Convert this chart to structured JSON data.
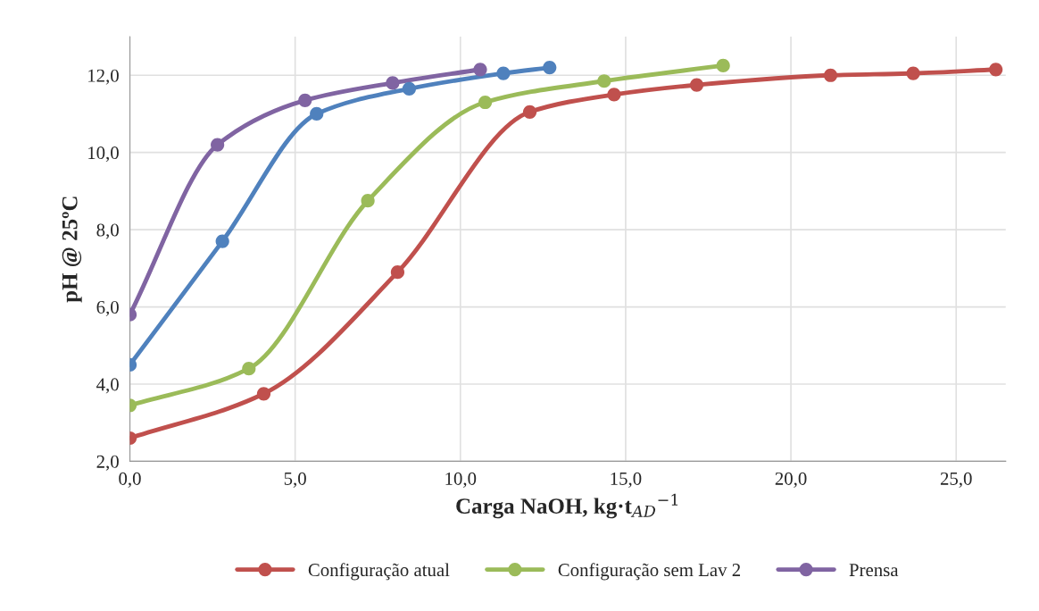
{
  "chart_data": {
    "type": "line",
    "xlabel": "Carga NaOH, kg·t$_{AD}$$^{−1}$",
    "ylabel": "pH @ 25ºC",
    "xlim": [
      0,
      26.5
    ],
    "ylim": [
      2,
      13
    ],
    "xticks": [
      {
        "value": 0,
        "label": "0,0"
      },
      {
        "value": 5,
        "label": "5,0"
      },
      {
        "value": 10,
        "label": "10,0"
      },
      {
        "value": 15,
        "label": "15,0"
      },
      {
        "value": 20,
        "label": "20,0"
      },
      {
        "value": 25,
        "label": "25,0"
      }
    ],
    "yticks": [
      {
        "value": 2,
        "label": "2,0"
      },
      {
        "value": 4,
        "label": "4,0"
      },
      {
        "value": 6,
        "label": "6,0"
      },
      {
        "value": 8,
        "label": "8,0"
      },
      {
        "value": 10,
        "label": "10,0"
      },
      {
        "value": 12,
        "label": "12,0"
      }
    ],
    "grid": true,
    "legend": "bottom",
    "marker": "circle",
    "line_style": "solid",
    "series": [
      {
        "color": "#4f81bd",
        "x": [
          0,
          2.8,
          5.65,
          8.45,
          11.3,
          12.7
        ],
        "values": [
          4.5,
          7.7,
          11.0,
          11.65,
          12.05,
          12.2
        ]
      },
      {
        "name": "Configuração atual",
        "color": "#c0504d",
        "x": [
          0,
          4.05,
          8.1,
          12.1,
          14.65,
          17.15,
          21.2,
          23.7,
          26.2
        ],
        "values": [
          2.6,
          3.75,
          6.9,
          11.05,
          11.5,
          11.75,
          12.0,
          12.05,
          12.15
        ]
      },
      {
        "name": "Configuração sem Lav 2",
        "color": "#9bbb59",
        "x": [
          0,
          3.6,
          7.2,
          10.75,
          14.35,
          17.95
        ],
        "values": [
          3.45,
          4.4,
          8.75,
          11.3,
          11.85,
          12.25
        ]
      },
      {
        "name": "Prensa",
        "color": "#8064a2",
        "x": [
          0,
          2.65,
          5.3,
          7.95,
          10.6
        ],
        "values": [
          5.8,
          10.2,
          11.35,
          11.8,
          12.15
        ]
      }
    ]
  }
}
